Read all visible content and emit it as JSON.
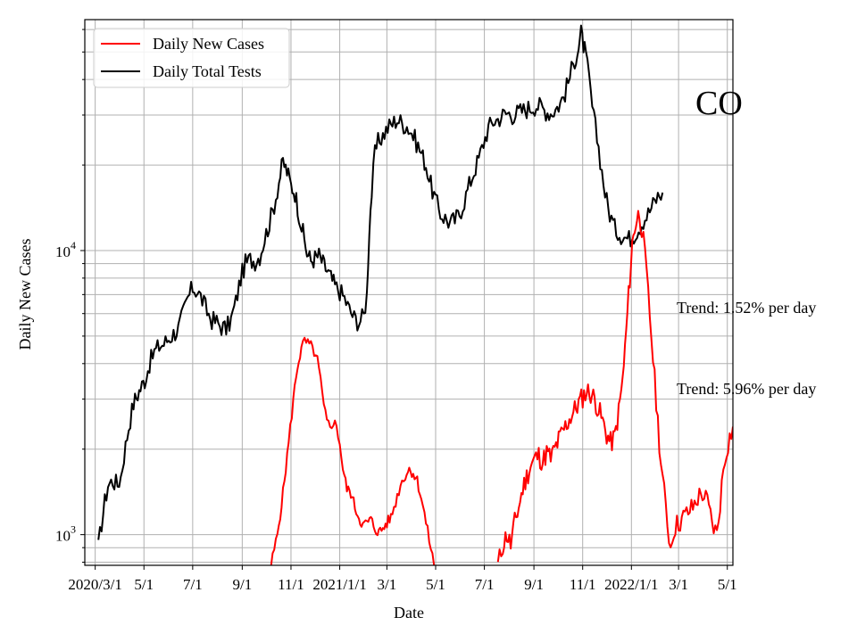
{
  "chart_data": {
    "type": "line",
    "state_label": "CO",
    "xlabel": "Date",
    "ylabel": "Daily New Cases",
    "yscale": "log",
    "ylim": [
      780,
      65000
    ],
    "xlim_days": [
      -13,
      798
    ],
    "x_unit": "days since 2020-03-01",
    "grid": true,
    "legend_position": "upper-left",
    "x_ticks": [
      {
        "day": 0,
        "label": "2020/3/1"
      },
      {
        "day": 61,
        "label": "5/1"
      },
      {
        "day": 122,
        "label": "7/1"
      },
      {
        "day": 184,
        "label": "9/1"
      },
      {
        "day": 245,
        "label": "11/1"
      },
      {
        "day": 306,
        "label": "2021/1/1"
      },
      {
        "day": 365,
        "label": "3/1"
      },
      {
        "day": 426,
        "label": "5/1"
      },
      {
        "day": 487,
        "label": "7/1"
      },
      {
        "day": 549,
        "label": "9/1"
      },
      {
        "day": 610,
        "label": "11/1"
      },
      {
        "day": 671,
        "label": "2022/1/1"
      },
      {
        "day": 730,
        "label": "3/1"
      },
      {
        "day": 791,
        "label": "5/1"
      }
    ],
    "y_major_ticks": [
      {
        "value": 1000,
        "base": "10",
        "exp": "3"
      },
      {
        "value": 10000,
        "base": "10",
        "exp": "4"
      }
    ],
    "y_minor_ticks": [
      800,
      900,
      2000,
      3000,
      4000,
      5000,
      6000,
      7000,
      8000,
      9000,
      20000,
      30000,
      40000,
      50000,
      60000
    ],
    "series": [
      {
        "name": "Daily New Cases",
        "color": "#ff0000",
        "points": [
          [
            220,
            780
          ],
          [
            228,
            1000
          ],
          [
            235,
            1400
          ],
          [
            242,
            2100
          ],
          [
            248,
            3000
          ],
          [
            253,
            3900
          ],
          [
            258,
            4500
          ],
          [
            262,
            4800
          ],
          [
            266,
            4700
          ],
          [
            270,
            4600
          ],
          [
            274,
            4400
          ],
          [
            278,
            4100
          ],
          [
            282,
            3500
          ],
          [
            286,
            2800
          ],
          [
            290,
            2500
          ],
          [
            294,
            2400
          ],
          [
            298,
            2500
          ],
          [
            302,
            2400
          ],
          [
            306,
            2100
          ],
          [
            310,
            1700
          ],
          [
            315,
            1450
          ],
          [
            320,
            1400
          ],
          [
            325,
            1250
          ],
          [
            330,
            1150
          ],
          [
            335,
            1080
          ],
          [
            340,
            1100
          ],
          [
            345,
            1130
          ],
          [
            350,
            1050
          ],
          [
            355,
            1020
          ],
          [
            360,
            1050
          ],
          [
            365,
            1100
          ],
          [
            370,
            1150
          ],
          [
            376,
            1300
          ],
          [
            382,
            1500
          ],
          [
            388,
            1620
          ],
          [
            393,
            1700
          ],
          [
            398,
            1650
          ],
          [
            403,
            1550
          ],
          [
            408,
            1350
          ],
          [
            414,
            1100
          ],
          [
            420,
            900
          ],
          [
            424,
            780
          ]
        ],
        "segment2": [
          [
            504,
            780
          ],
          [
            510,
            920
          ],
          [
            515,
            1000
          ],
          [
            520,
            920
          ],
          [
            525,
            1100
          ],
          [
            530,
            1250
          ],
          [
            535,
            1450
          ],
          [
            540,
            1600
          ],
          [
            545,
            1750
          ],
          [
            550,
            1850
          ],
          [
            555,
            1900
          ],
          [
            560,
            1800
          ],
          [
            565,
            1950
          ],
          [
            570,
            1850
          ],
          [
            575,
            2000
          ],
          [
            580,
            2150
          ],
          [
            585,
            2300
          ],
          [
            590,
            2450
          ],
          [
            595,
            2600
          ],
          [
            600,
            2750
          ],
          [
            605,
            2900
          ],
          [
            610,
            3050
          ],
          [
            615,
            3200
          ],
          [
            620,
            3150
          ],
          [
            625,
            3000
          ],
          [
            630,
            2750
          ],
          [
            635,
            2500
          ],
          [
            640,
            2250
          ],
          [
            645,
            2100
          ],
          [
            650,
            2200
          ],
          [
            655,
            2700
          ],
          [
            660,
            3500
          ],
          [
            663,
            4500
          ],
          [
            666,
            6000
          ],
          [
            669,
            8000
          ],
          [
            672,
            10500
          ],
          [
            675,
            12000
          ],
          [
            678,
            13000
          ],
          [
            681,
            13500
          ],
          [
            684,
            12000
          ],
          [
            688,
            9500
          ],
          [
            692,
            7000
          ],
          [
            696,
            5000
          ],
          [
            700,
            3500
          ],
          [
            704,
            2500
          ],
          [
            708,
            1800
          ],
          [
            712,
            1400
          ],
          [
            716,
            1100
          ],
          [
            720,
            900
          ],
          [
            724,
            1050
          ],
          [
            730,
            1100
          ],
          [
            736,
            1150
          ],
          [
            742,
            1200
          ],
          [
            748,
            1250
          ],
          [
            754,
            1350
          ],
          [
            760,
            1400
          ],
          [
            766,
            1300
          ],
          [
            772,
            1100
          ],
          [
            778,
            1000
          ],
          [
            782,
            1300
          ],
          [
            786,
            1700
          ],
          [
            790,
            2000
          ],
          [
            794,
            2200
          ],
          [
            798,
            2400
          ]
        ]
      },
      {
        "name": "Daily Total Tests",
        "color": "#000000",
        "points": [
          [
            4,
            900
          ],
          [
            8,
            1100
          ],
          [
            12,
            1300
          ],
          [
            16,
            1500
          ],
          [
            22,
            1550
          ],
          [
            28,
            1500
          ],
          [
            32,
            1600
          ],
          [
            36,
            1900
          ],
          [
            42,
            2400
          ],
          [
            48,
            2900
          ],
          [
            55,
            3200
          ],
          [
            62,
            3500
          ],
          [
            68,
            4000
          ],
          [
            74,
            4400
          ],
          [
            80,
            4600
          ],
          [
            86,
            4700
          ],
          [
            92,
            4900
          ],
          [
            98,
            5100
          ],
          [
            104,
            5300
          ],
          [
            110,
            6000
          ],
          [
            116,
            6800
          ],
          [
            122,
            7400
          ],
          [
            128,
            7200
          ],
          [
            134,
            6700
          ],
          [
            140,
            6100
          ],
          [
            146,
            5700
          ],
          [
            152,
            5600
          ],
          [
            158,
            5400
          ],
          [
            164,
            5300
          ],
          [
            170,
            5700
          ],
          [
            176,
            6600
          ],
          [
            182,
            8000
          ],
          [
            188,
            9000
          ],
          [
            194,
            9300
          ],
          [
            200,
            9200
          ],
          [
            206,
            9600
          ],
          [
            212,
            11000
          ],
          [
            218,
            12500
          ],
          [
            224,
            14500
          ],
          [
            230,
            17500
          ],
          [
            235,
            20500
          ],
          [
            240,
            19000
          ],
          [
            245,
            17000
          ],
          [
            250,
            16000
          ],
          [
            255,
            13500
          ],
          [
            260,
            11500
          ],
          [
            265,
            9800
          ],
          [
            270,
            9200
          ],
          [
            275,
            9400
          ],
          [
            280,
            9600
          ],
          [
            285,
            9000
          ],
          [
            290,
            8500
          ],
          [
            295,
            8000
          ],
          [
            300,
            7500
          ],
          [
            306,
            7200
          ],
          [
            312,
            6800
          ],
          [
            318,
            6200
          ],
          [
            324,
            5800
          ],
          [
            330,
            5600
          ],
          [
            336,
            5900
          ],
          [
            340,
            7000
          ],
          [
            343,
            12000
          ],
          [
            346,
            16000
          ],
          [
            350,
            22000
          ],
          [
            354,
            24000
          ],
          [
            360,
            25500
          ],
          [
            366,
            27000
          ],
          [
            372,
            28000
          ],
          [
            378,
            29000
          ],
          [
            384,
            28000
          ],
          [
            390,
            27500
          ],
          [
            396,
            26000
          ],
          [
            402,
            24000
          ],
          [
            408,
            22000
          ],
          [
            414,
            20000
          ],
          [
            420,
            17000
          ],
          [
            426,
            15000
          ],
          [
            432,
            13500
          ],
          [
            438,
            13000
          ],
          [
            444,
            12500
          ],
          [
            450,
            12800
          ],
          [
            456,
            13500
          ],
          [
            462,
            15000
          ],
          [
            468,
            17000
          ],
          [
            474,
            19000
          ],
          [
            480,
            21000
          ],
          [
            486,
            24000
          ],
          [
            492,
            27000
          ],
          [
            498,
            28500
          ],
          [
            504,
            29000
          ],
          [
            510,
            30000
          ],
          [
            516,
            30500
          ],
          [
            522,
            30000
          ],
          [
            528,
            30500
          ],
          [
            534,
            31000
          ],
          [
            540,
            31500
          ],
          [
            546,
            32000
          ],
          [
            552,
            32500
          ],
          [
            558,
            32000
          ],
          [
            564,
            31000
          ],
          [
            570,
            30500
          ],
          [
            576,
            31500
          ],
          [
            582,
            33000
          ],
          [
            588,
            36000
          ],
          [
            594,
            41000
          ],
          [
            600,
            47000
          ],
          [
            605,
            52000
          ],
          [
            608,
            58000
          ],
          [
            611,
            53000
          ],
          [
            614,
            48000
          ],
          [
            618,
            40000
          ],
          [
            622,
            32000
          ],
          [
            626,
            27000
          ],
          [
            630,
            23000
          ],
          [
            634,
            19000
          ],
          [
            638,
            16000
          ],
          [
            642,
            14000
          ],
          [
            646,
            13000
          ],
          [
            650,
            12000
          ],
          [
            656,
            11500
          ],
          [
            662,
            11200
          ],
          [
            668,
            11000
          ],
          [
            674,
            11400
          ],
          [
            680,
            12000
          ],
          [
            686,
            12800
          ],
          [
            692,
            13500
          ],
          [
            698,
            14500
          ],
          [
            704,
            15500
          ],
          [
            710,
            16000
          ]
        ]
      }
    ],
    "annotations": [
      {
        "text": "Trend: 1.52% per day"
      },
      {
        "text": "Trend: 5.96% per day"
      }
    ]
  }
}
